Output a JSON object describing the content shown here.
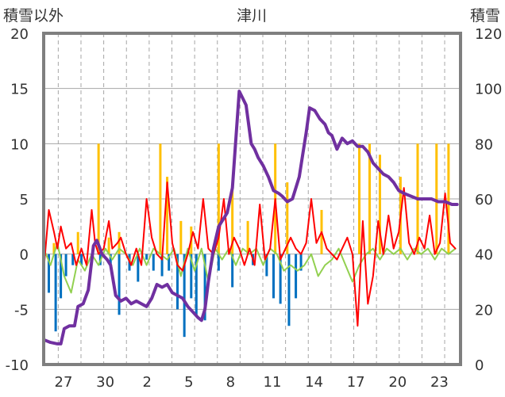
{
  "chart_data": {
    "type": "line",
    "title": "津川",
    "ylabel": "積雪以外",
    "y2label": "積雪",
    "ylim": [
      -10,
      20
    ],
    "y2lim": [
      0,
      120
    ],
    "yticks": [
      "20",
      "15",
      "10",
      "5",
      "0",
      "-5",
      "-10"
    ],
    "y2ticks": [
      "120",
      "100",
      "80",
      "60",
      "40",
      "20",
      "0"
    ],
    "xticks": [
      "27",
      "30",
      "2",
      "5",
      "8",
      "11",
      "14",
      "17",
      "20",
      "23"
    ],
    "grid": true,
    "colors": {
      "snow_depth": "#7030a0",
      "temperature": "#ff0000",
      "precipitation": "#ffc000",
      "snow_change": "#0070c0",
      "wind": "#92d050",
      "frame": "#7f7f7f",
      "grid": "#a6a6a6"
    },
    "series": [
      {
        "key": "snow_depth",
        "axis": "right",
        "x": [
          0,
          0.4,
          0.8,
          1.0,
          1.2,
          1.5,
          1.8,
          2.0,
          2.3,
          2.6,
          2.9,
          3.1,
          3.4,
          3.7,
          3.9,
          4.2,
          4.5,
          4.8,
          5.1,
          5.4,
          5.7,
          6.0,
          6.3,
          6.6,
          6.9,
          7.2,
          7.5,
          7.8,
          8.1,
          8.4,
          8.7,
          9.0,
          9.2,
          9.4,
          9.6,
          9.9,
          10.2,
          10.4,
          10.7,
          11.0,
          11.4,
          11.8,
          12.1,
          12.3,
          12.5,
          12.8,
          13.1,
          13.4,
          13.7,
          13.9,
          14.2,
          14.5,
          14.7,
          14.9,
          15.1,
          15.3,
          15.5,
          15.8,
          16.1,
          16.4,
          16.6,
          16.8,
          17.1,
          17.4,
          17.7,
          18.0,
          18.3,
          18.6,
          18.9,
          19.2,
          19.5,
          19.8,
          20.1,
          20.4,
          20.7,
          21.0,
          21.4,
          21.8,
          22.2,
          22.6,
          23.0,
          23.4,
          23.8,
          24.1
        ],
        "values": [
          9,
          8,
          7.5,
          7.5,
          13,
          14,
          14,
          21,
          22,
          27,
          43,
          45,
          40,
          38,
          36,
          25,
          23,
          24,
          22,
          23,
          22,
          21,
          24,
          29,
          28,
          29,
          26,
          25,
          24,
          21,
          19,
          17,
          16,
          20,
          30,
          42,
          50,
          52,
          55,
          64,
          99,
          94,
          80,
          78,
          75,
          72,
          68,
          63,
          62,
          61,
          59,
          60,
          64,
          68,
          76,
          84,
          93,
          92,
          89,
          87,
          84,
          83,
          78,
          82,
          80,
          81,
          79,
          79,
          77,
          73,
          71,
          69,
          68,
          66,
          63,
          62,
          61,
          60,
          60,
          60,
          59,
          59,
          58,
          58
        ]
      },
      {
        "key": "temperature",
        "axis": "left",
        "x": [
          0,
          0.3,
          0.6,
          0.8,
          1.0,
          1.3,
          1.6,
          1.9,
          2.2,
          2.5,
          2.8,
          3.0,
          3.2,
          3.5,
          3.8,
          4.0,
          4.3,
          4.5,
          4.8,
          5.1,
          5.4,
          5.7,
          6.0,
          6.3,
          6.6,
          6.9,
          7.2,
          7.5,
          7.8,
          8.1,
          8.4,
          8.7,
          9.0,
          9.3,
          9.6,
          9.9,
          10.2,
          10.5,
          10.8,
          11.1,
          11.4,
          11.7,
          12.0,
          12.3,
          12.6,
          12.9,
          13.2,
          13.5,
          13.8,
          14.1,
          14.4,
          14.7,
          15.0,
          15.3,
          15.6,
          15.9,
          16.2,
          16.5,
          16.8,
          17.1,
          17.4,
          17.7,
          18.0,
          18.3,
          18.6,
          18.9,
          19.2,
          19.5,
          19.8,
          20.1,
          20.4,
          20.7,
          21.0,
          21.3,
          21.6,
          21.9,
          22.2,
          22.5,
          22.8,
          23.1,
          23.4,
          23.7,
          24.0
        ],
        "values": [
          -1.5,
          4,
          2,
          0.5,
          2.5,
          0.5,
          1,
          -1,
          0.5,
          -1,
          4,
          1,
          0,
          0.5,
          3,
          0.5,
          1,
          1.5,
          0,
          -1,
          0.5,
          -1,
          5,
          1.5,
          0,
          -0.5,
          6.5,
          1,
          -1,
          -1.5,
          0,
          2,
          0.5,
          5,
          0.5,
          0,
          1.5,
          5,
          0,
          1.5,
          0.5,
          -1,
          0.5,
          -1,
          4.5,
          -0.5,
          0.5,
          5,
          -0.5,
          0.5,
          1.5,
          0.5,
          0,
          1,
          5,
          1,
          2,
          0.5,
          0,
          -0.5,
          0.5,
          1.5,
          0,
          -6.5,
          3,
          -4.5,
          -2,
          3,
          0,
          3.5,
          0.5,
          2,
          6,
          1,
          0,
          1.5,
          0.5,
          3.5,
          0,
          1,
          5.5,
          1,
          0.5
        ]
      },
      {
        "key": "wind",
        "axis": "left",
        "x": [
          0,
          0.4,
          0.8,
          1.2,
          1.6,
          2.0,
          2.4,
          2.8,
          3.2,
          3.6,
          4.0,
          4.4,
          4.8,
          5.2,
          5.6,
          6.0,
          6.4,
          6.8,
          7.2,
          7.6,
          8.0,
          8.4,
          8.8,
          9.2,
          9.6,
          10.0,
          10.4,
          10.8,
          11.2,
          11.6,
          12.0,
          12.4,
          12.8,
          13.2,
          13.6,
          14.0,
          14.4,
          14.8,
          15.2,
          15.6,
          16.0,
          16.4,
          16.8,
          17.2,
          17.6,
          18.0,
          18.4,
          18.8,
          19.2,
          19.6,
          20.0,
          20.4,
          20.8,
          21.2,
          21.6,
          22.0,
          22.4,
          22.8,
          23.2,
          23.6,
          24.0
        ],
        "values": [
          0.5,
          -1,
          1,
          -2,
          -3.5,
          -0.5,
          -1.5,
          0,
          -1,
          0.5,
          -0.5,
          0.5,
          0,
          -1,
          0.5,
          -1,
          0.5,
          0,
          -0.5,
          0.5,
          -2,
          0.5,
          -1.5,
          0.5,
          -2.5,
          0.5,
          -0.5,
          0.5,
          -1,
          0.5,
          0,
          0.5,
          -1,
          0.5,
          0,
          -1.5,
          -1,
          -1.5,
          -1,
          0,
          -2,
          -1,
          -0.5,
          0.5,
          -1,
          -2.5,
          -1,
          0,
          0.5,
          -0.5,
          0.5,
          0,
          0.5,
          -0.5,
          0.5,
          0,
          0.5,
          -0.5,
          0.5,
          0,
          0.5
        ]
      }
    ],
    "bar_series": [
      {
        "key": "precipitation",
        "axis": "left",
        "x": [
          0.6,
          2.0,
          3.2,
          3.8,
          4.4,
          6.8,
          7.2,
          8.0,
          8.6,
          10.2,
          11.0,
          11.9,
          13.5,
          14.2,
          16.2,
          18.4,
          19.0,
          19.6,
          20.8,
          21.8,
          22.9,
          23.6
        ],
        "values": [
          1,
          2,
          10,
          1.5,
          2,
          10,
          7,
          3,
          2.5,
          10,
          6,
          3,
          10,
          6.5,
          4,
          10,
          10,
          9,
          7,
          10,
          10,
          10
        ]
      },
      {
        "key": "snow_change",
        "axis": "left",
        "x": [
          0.3,
          0.7,
          1.0,
          1.3,
          1.7,
          2.2,
          2.8,
          3.3,
          3.9,
          4.4,
          5.0,
          5.5,
          6.0,
          6.4,
          6.9,
          7.3,
          7.8,
          8.2,
          8.6,
          8.9,
          9.4,
          10.2,
          11.0,
          12.2,
          13.0,
          13.4,
          13.8,
          14.3,
          14.7,
          15.0
        ],
        "values": [
          -3.5,
          -7,
          -4,
          -2,
          -1,
          -1,
          -0.5,
          -1,
          -1,
          -5.5,
          -1.5,
          -2.5,
          -0.5,
          -1.5,
          -2,
          -1.5,
          -5,
          -7.5,
          -4,
          -5.5,
          -6,
          -1.5,
          -3,
          -1,
          -2,
          -4,
          -4.5,
          -6.5,
          -4,
          -1.5
        ]
      }
    ]
  }
}
